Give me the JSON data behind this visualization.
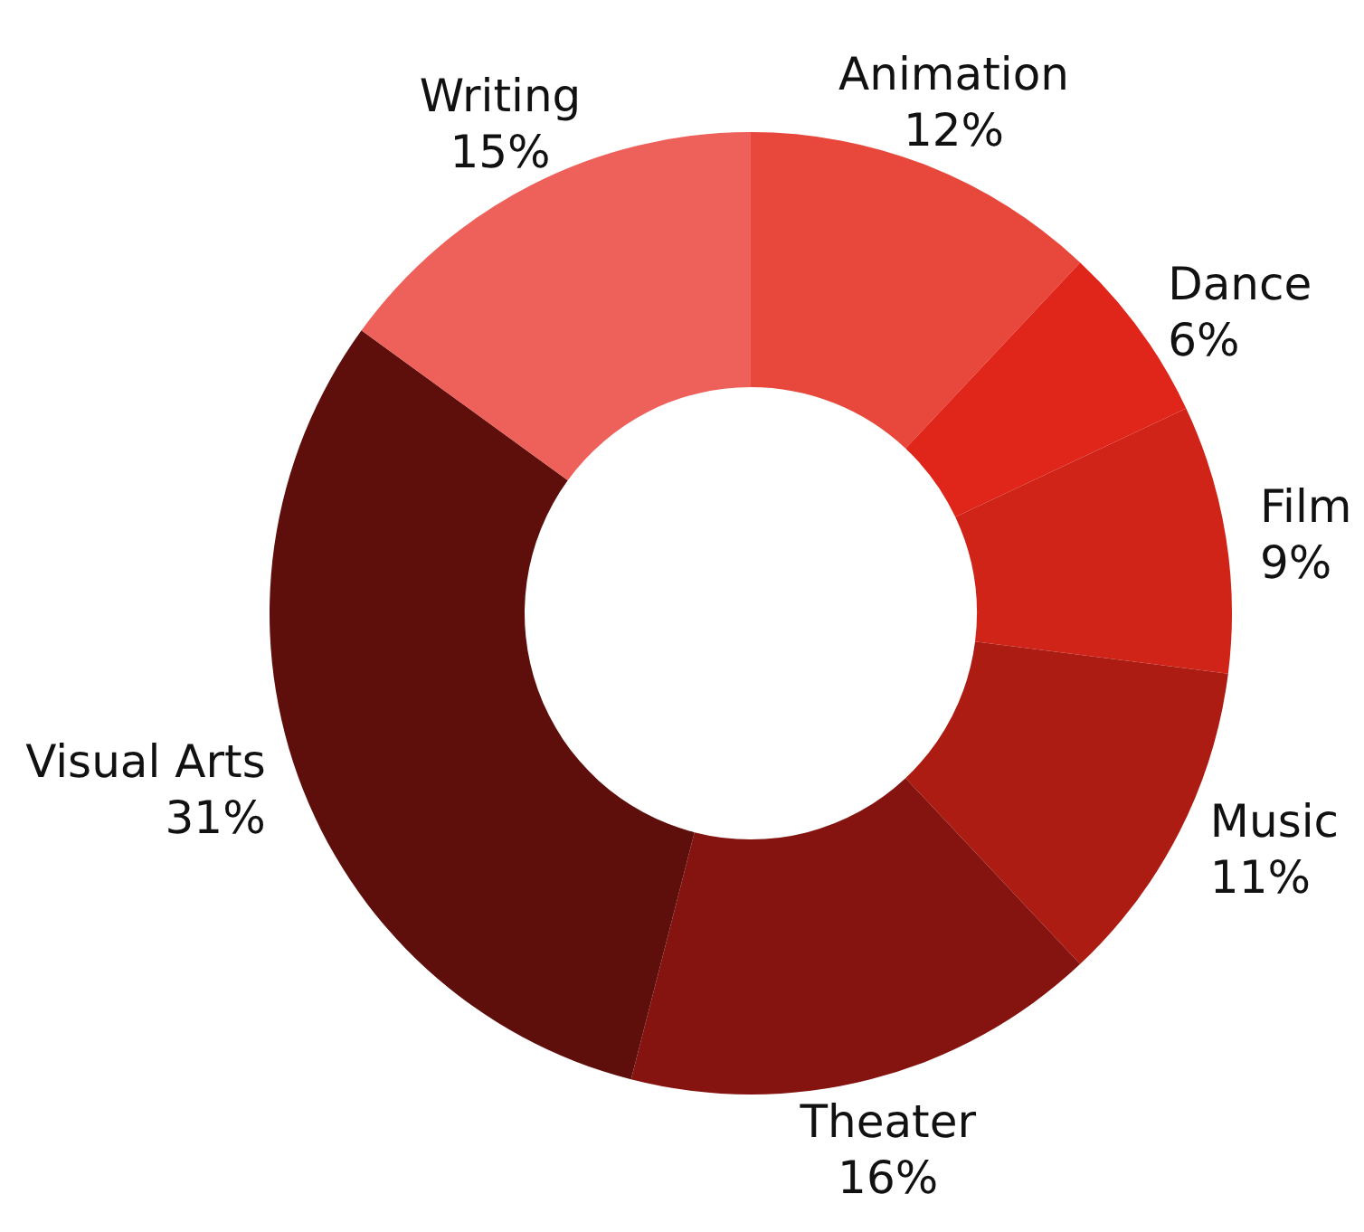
{
  "chart_data": {
    "type": "donut",
    "categories": [
      "Animation",
      "Dance",
      "Film",
      "Music",
      "Theater",
      "Visual Arts",
      "Writing"
    ],
    "values": [
      12,
      6,
      9,
      11,
      16,
      31,
      15
    ],
    "colors": [
      "#e8483c",
      "#e0261a",
      "#d02418",
      "#ad1c12",
      "#851410",
      "#5e0f0b",
      "#ee605a"
    ],
    "value_labels": [
      "12%",
      "6%",
      "9%",
      "11%",
      "16%",
      "31%",
      "15%"
    ],
    "legend": false
  }
}
